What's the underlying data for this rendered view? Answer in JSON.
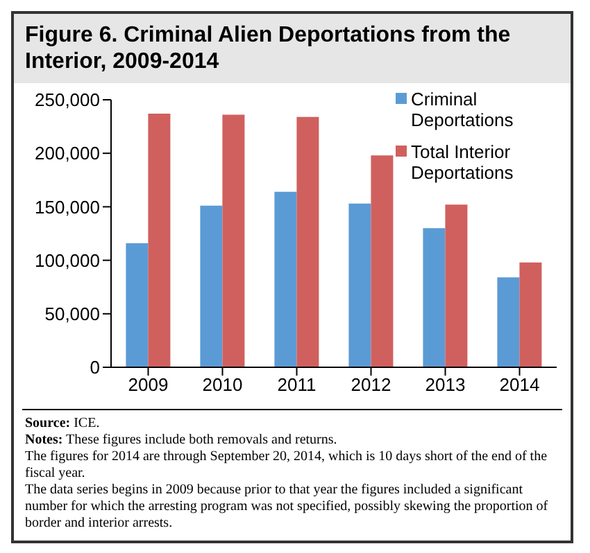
{
  "chart_data": {
    "type": "bar",
    "title": "Figure 6. Criminal Alien Deportations from the Interior, 2009-2014",
    "categories": [
      "2009",
      "2010",
      "2011",
      "2012",
      "2013",
      "2014"
    ],
    "series": [
      {
        "name": "Criminal Deportations",
        "color": "#5b9bd5",
        "values": [
          116000,
          151000,
          164000,
          153000,
          130000,
          84000
        ]
      },
      {
        "name": "Total Interior Deportations",
        "color": "#d0605e",
        "values": [
          237000,
          236000,
          234000,
          198000,
          152000,
          98000
        ]
      }
    ],
    "ylim": [
      0,
      250000
    ],
    "yticks": [
      0,
      {
        "value": 50000,
        "label": "50,000"
      },
      {
        "value": 100000,
        "label": "100,000"
      },
      {
        "value": 150000,
        "label": "150,000"
      },
      {
        "value": 200000,
        "label": "200,000"
      },
      {
        "value": 250000,
        "label": "250,000"
      }
    ],
    "grid": false,
    "legend": "top right",
    "annotations": [
      "Source: ICE.",
      "Notes: These figures include both removals and returns.",
      "The figures for 2014 are through September 20, 2014, which is 10 days short of the end of the fiscal year.",
      "The data series begins in 2009 because prior to that year the figures included a significant number for which the arresting program was not specified, possibly skewing the proportion of border and interior arrests."
    ]
  }
}
